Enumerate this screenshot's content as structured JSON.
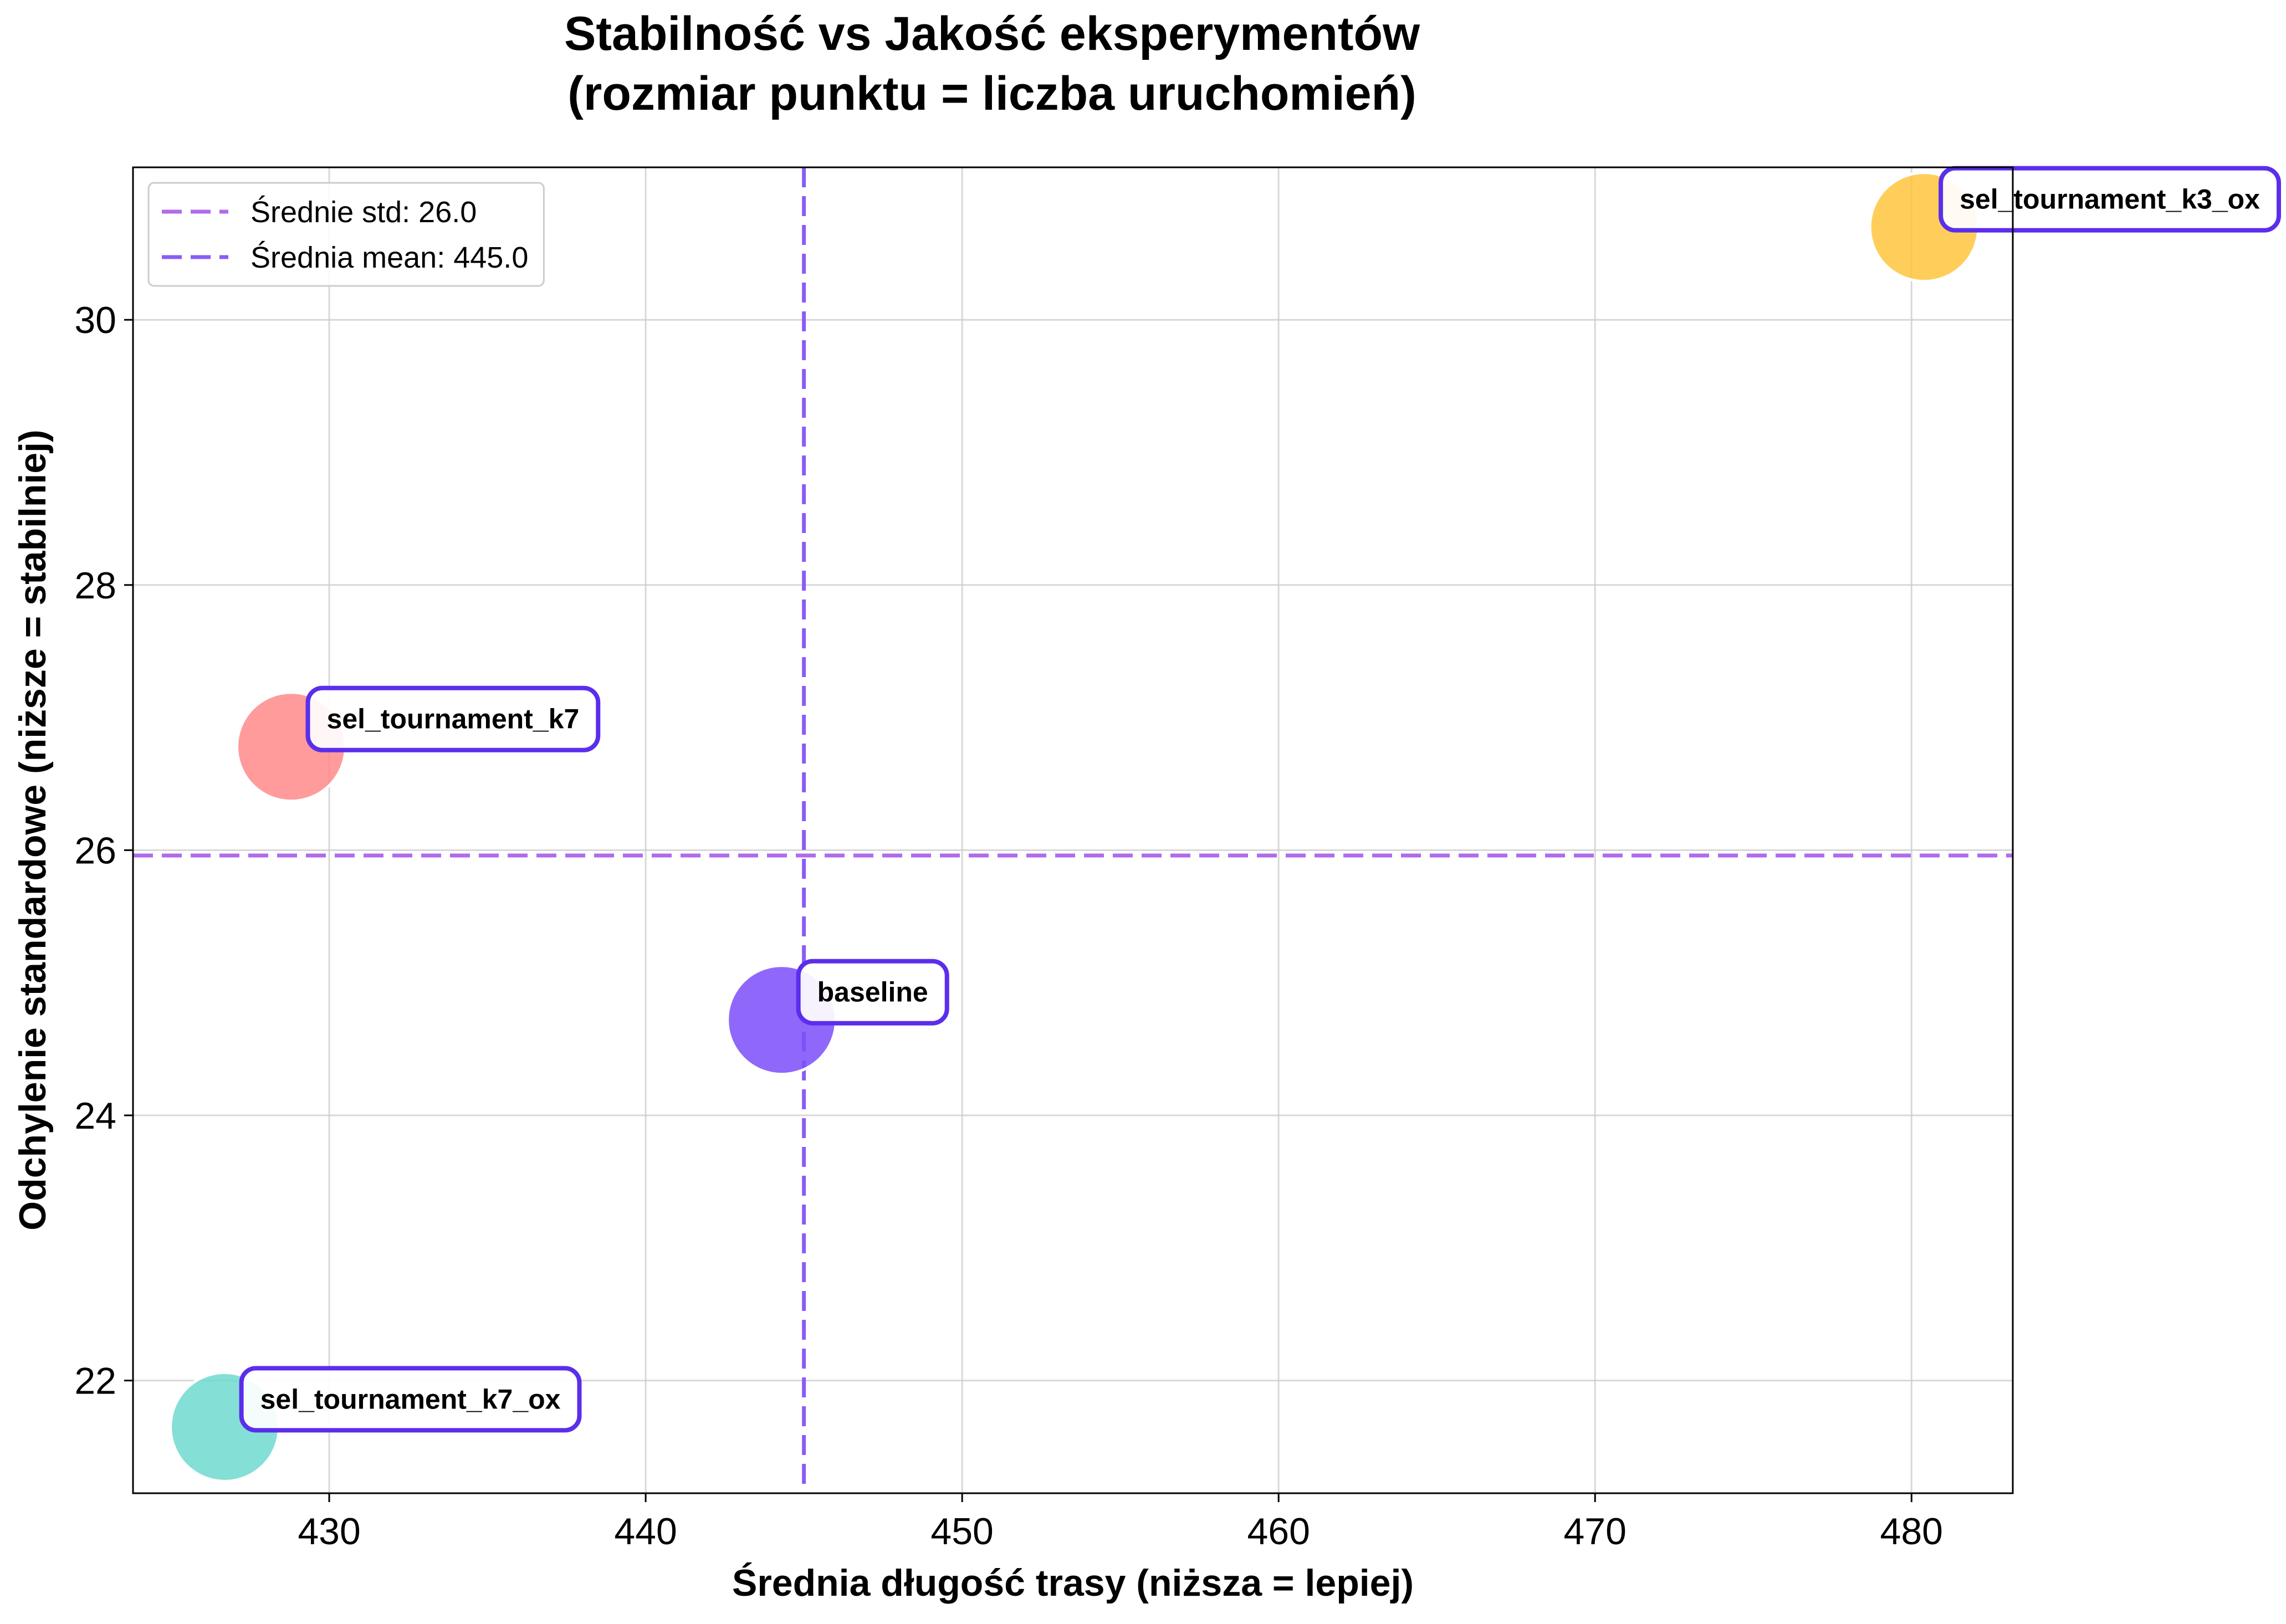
{
  "chart_data": {
    "type": "scatter",
    "title": "Stabilność vs Jakość eksperymentów",
    "subtitle": "(rozmiar punktu = liczba uruchomień)",
    "xlabel": "Średnia długość trasy (niższa = lepiej)",
    "ylabel": "Odchylenie standardowe (niższe = stabilniej)",
    "xlim": [
      423.8,
      483.2
    ],
    "ylim": [
      21.15,
      31.15
    ],
    "xticks": [
      "430",
      "440",
      "450",
      "460",
      "470",
      "480"
    ],
    "yticks": [
      "22",
      "24",
      "26",
      "28",
      "30"
    ],
    "grid": true,
    "legend_position": "top-left",
    "points": [
      {
        "label": "sel_tournament_k3_ox",
        "x": 480.4,
        "y": 30.7,
        "color": "#FFC53D"
      },
      {
        "label": "sel_tournament_k7",
        "x": 428.8,
        "y": 26.78,
        "color": "#FF8A8A"
      },
      {
        "label": "baseline",
        "x": 444.3,
        "y": 24.72,
        "color": "#7B4DFA"
      },
      {
        "label": "sel_tournament_k7_ox",
        "x": 426.7,
        "y": 21.65,
        "color": "#6ED9CF"
      }
    ],
    "reference_lines": [
      {
        "orientation": "horizontal",
        "value": 25.96,
        "legend": "Średnie std: 26.0",
        "color": "#B06BEB"
      },
      {
        "orientation": "vertical",
        "value": 445.0,
        "legend": "Średnia mean: 445.0",
        "color": "#8A5CF5"
      }
    ],
    "label_border_color": "#5B2EEB"
  }
}
